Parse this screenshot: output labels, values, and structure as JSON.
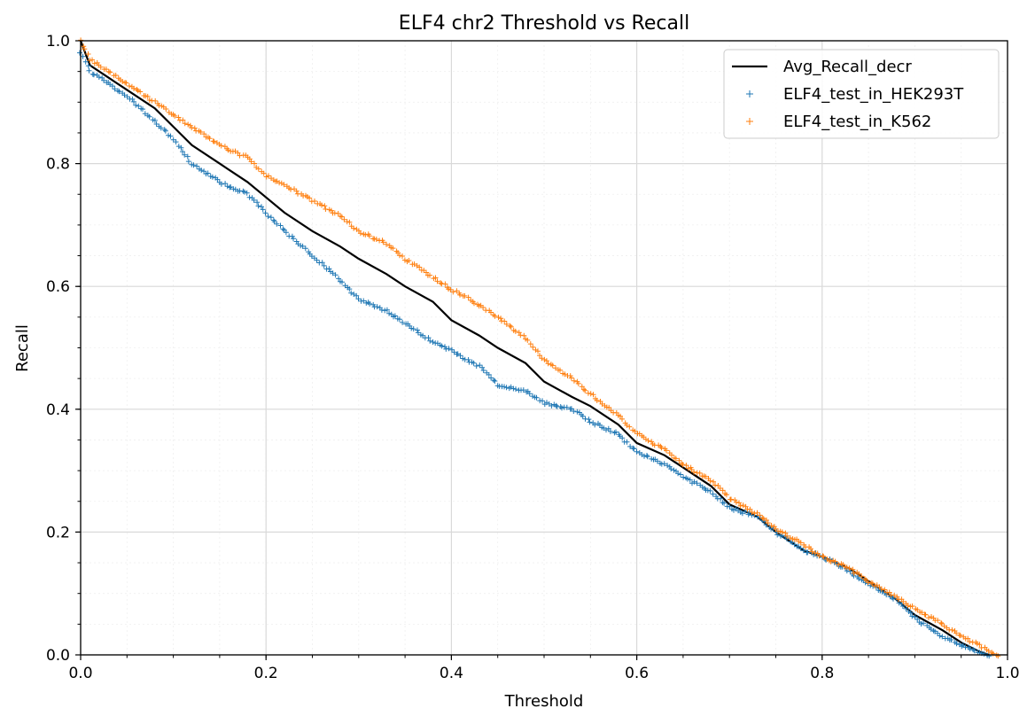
{
  "chart_data": {
    "type": "line",
    "title": "ELF4 chr2 Threshold vs Recall",
    "xlabel": "Threshold",
    "ylabel": "Recall",
    "xlim": [
      0.0,
      1.0
    ],
    "ylim": [
      0.0,
      1.0
    ],
    "xticks": [
      "0.0",
      "0.2",
      "0.4",
      "0.6",
      "0.8",
      "1.0"
    ],
    "yticks": [
      "0.0",
      "0.2",
      "0.4",
      "0.6",
      "0.8",
      "1.0"
    ],
    "grid": true,
    "minor_grid": true,
    "legend_position": "top-right",
    "series": [
      {
        "name": "Avg_Recall_decr",
        "style": "line",
        "color": "#000000",
        "x": [
          0.0,
          0.01,
          0.03,
          0.05,
          0.08,
          0.1,
          0.12,
          0.15,
          0.18,
          0.2,
          0.22,
          0.25,
          0.28,
          0.3,
          0.33,
          0.35,
          0.38,
          0.4,
          0.43,
          0.45,
          0.48,
          0.5,
          0.53,
          0.55,
          0.58,
          0.6,
          0.63,
          0.65,
          0.68,
          0.7,
          0.73,
          0.75,
          0.78,
          0.8,
          0.83,
          0.85,
          0.88,
          0.9,
          0.93,
          0.95,
          0.97,
          0.98
        ],
        "y": [
          1.0,
          0.96,
          0.94,
          0.92,
          0.89,
          0.86,
          0.83,
          0.8,
          0.77,
          0.745,
          0.72,
          0.69,
          0.665,
          0.645,
          0.62,
          0.6,
          0.575,
          0.545,
          0.52,
          0.5,
          0.475,
          0.445,
          0.42,
          0.405,
          0.375,
          0.345,
          0.325,
          0.305,
          0.275,
          0.245,
          0.225,
          0.2,
          0.17,
          0.16,
          0.14,
          0.12,
          0.09,
          0.065,
          0.04,
          0.02,
          0.005,
          0.0
        ]
      },
      {
        "name": "ELF4_test_in_HEK293T",
        "style": "scatter",
        "marker": "+",
        "color": "#1f77b4",
        "x": [
          0.0,
          0.01,
          0.03,
          0.05,
          0.08,
          0.1,
          0.12,
          0.15,
          0.18,
          0.2,
          0.22,
          0.25,
          0.28,
          0.3,
          0.33,
          0.35,
          0.38,
          0.4,
          0.43,
          0.45,
          0.48,
          0.5,
          0.53,
          0.55,
          0.58,
          0.6,
          0.63,
          0.65,
          0.68,
          0.7,
          0.73,
          0.75,
          0.78,
          0.8,
          0.83,
          0.85,
          0.88,
          0.9,
          0.93,
          0.95,
          0.97,
          0.98
        ],
        "y": [
          0.98,
          0.95,
          0.93,
          0.91,
          0.87,
          0.84,
          0.8,
          0.77,
          0.75,
          0.72,
          0.69,
          0.65,
          0.61,
          0.58,
          0.56,
          0.54,
          0.51,
          0.495,
          0.47,
          0.44,
          0.43,
          0.41,
          0.4,
          0.38,
          0.36,
          0.33,
          0.31,
          0.29,
          0.265,
          0.24,
          0.225,
          0.2,
          0.17,
          0.16,
          0.135,
          0.115,
          0.09,
          0.06,
          0.03,
          0.015,
          0.003,
          0.0
        ]
      },
      {
        "name": "ELF4_test_in_K562",
        "style": "scatter",
        "marker": "+",
        "color": "#ff7f0e",
        "x": [
          0.0,
          0.01,
          0.03,
          0.05,
          0.08,
          0.1,
          0.12,
          0.15,
          0.18,
          0.2,
          0.22,
          0.25,
          0.28,
          0.3,
          0.33,
          0.35,
          0.38,
          0.4,
          0.43,
          0.45,
          0.48,
          0.5,
          0.53,
          0.55,
          0.58,
          0.6,
          0.63,
          0.65,
          0.68,
          0.7,
          0.73,
          0.75,
          0.78,
          0.8,
          0.83,
          0.85,
          0.88,
          0.9,
          0.93,
          0.95,
          0.97,
          0.98,
          0.99
        ],
        "y": [
          1.0,
          0.97,
          0.95,
          0.93,
          0.9,
          0.88,
          0.86,
          0.83,
          0.81,
          0.78,
          0.765,
          0.74,
          0.715,
          0.69,
          0.67,
          0.645,
          0.615,
          0.595,
          0.57,
          0.55,
          0.515,
          0.48,
          0.45,
          0.425,
          0.39,
          0.36,
          0.335,
          0.31,
          0.285,
          0.255,
          0.23,
          0.205,
          0.18,
          0.16,
          0.14,
          0.12,
          0.095,
          0.075,
          0.05,
          0.03,
          0.015,
          0.005,
          0.0
        ]
      }
    ]
  }
}
